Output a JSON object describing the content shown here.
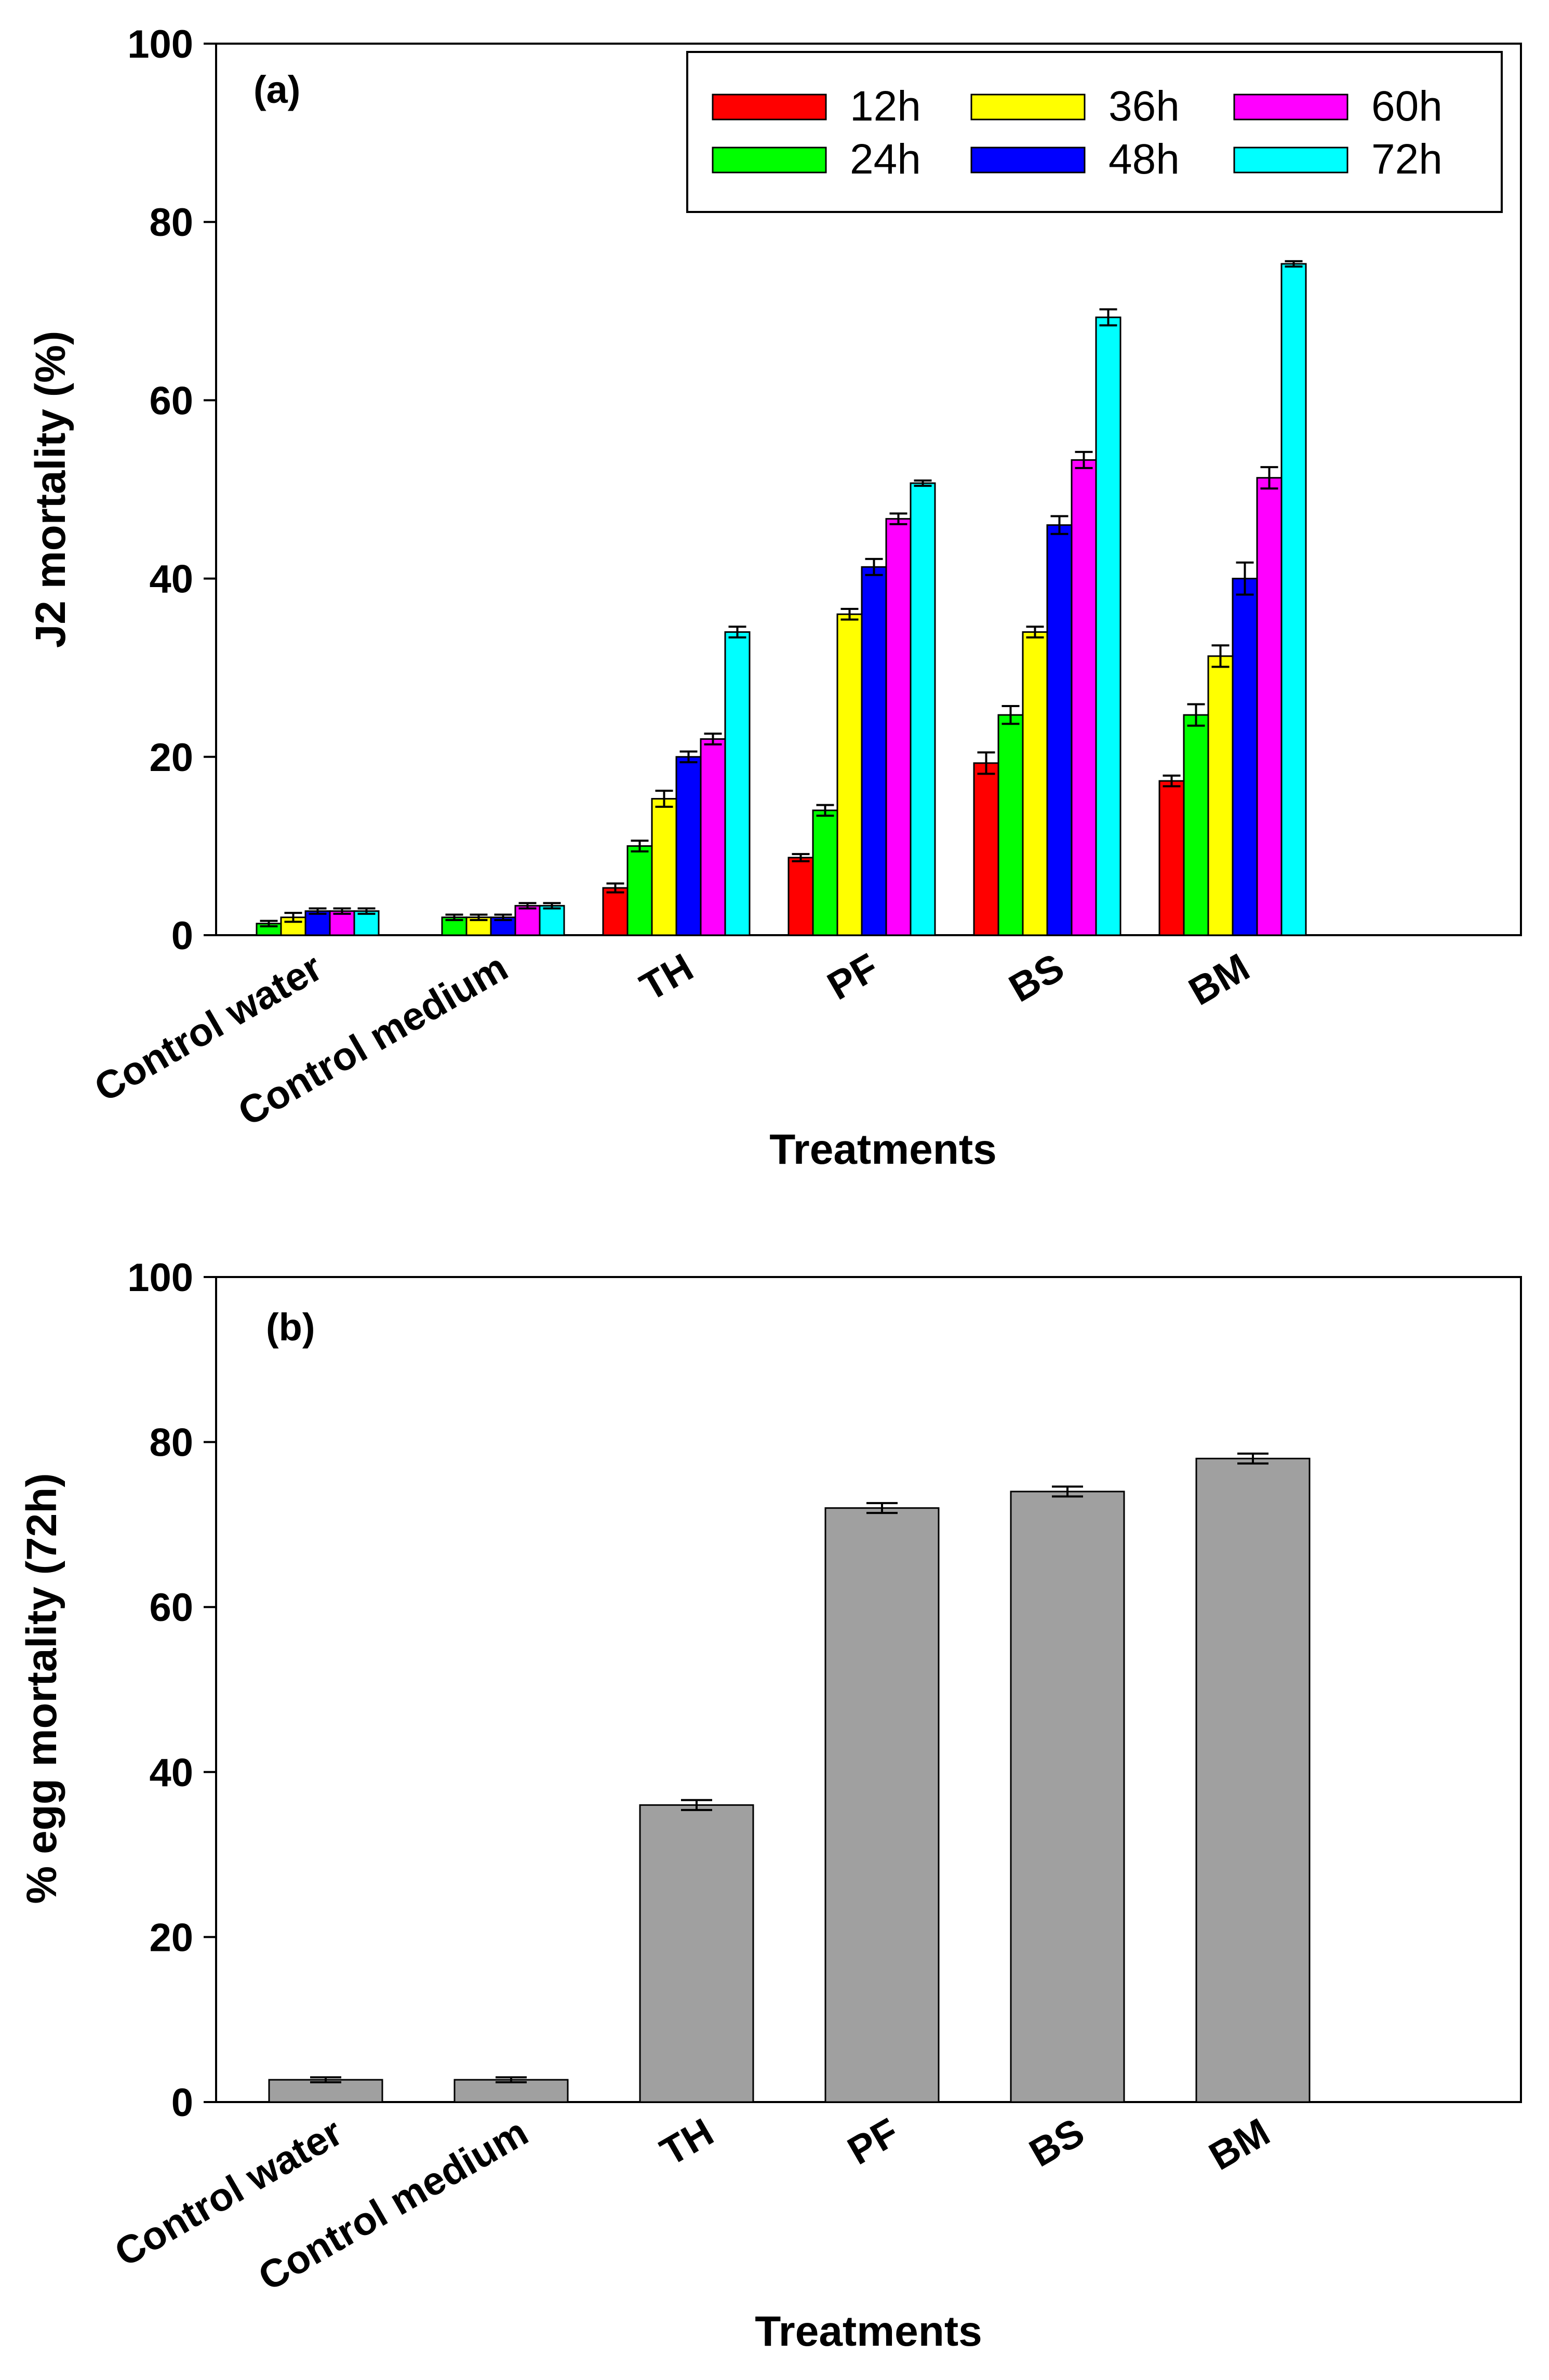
{
  "chart_data": [
    {
      "type": "bar",
      "panel_label": "(a)",
      "title": "",
      "xlabel": "Treatments",
      "ylabel": "J2 mortality (%)",
      "ylim": [
        0,
        100
      ],
      "yticks": [
        "0",
        "20",
        "40",
        "60",
        "80",
        "100"
      ],
      "grid": false,
      "legend_position": "top-right",
      "categories": [
        "Control water",
        "Control medium",
        "TH",
        "PF",
        "BS",
        "BM"
      ],
      "series": [
        {
          "name": "12h",
          "color": "#ff0000",
          "values": [
            0,
            0,
            5.3,
            8.7,
            19.3,
            17.3
          ],
          "errors": [
            0,
            0,
            0.5,
            0.4,
            1.2,
            0.6
          ]
        },
        {
          "name": "24h",
          "color": "#00ff00",
          "values": [
            1.3,
            2.0,
            10.0,
            14.0,
            24.7,
            24.7
          ],
          "errors": [
            0.3,
            0.3,
            0.6,
            0.6,
            1.0,
            1.2
          ]
        },
        {
          "name": "36h",
          "color": "#ffff00",
          "values": [
            2.0,
            2.0,
            15.3,
            36.0,
            34.0,
            31.3
          ],
          "errors": [
            0.5,
            0.3,
            0.9,
            0.6,
            0.6,
            1.2
          ]
        },
        {
          "name": "48h",
          "color": "#0000ff",
          "values": [
            2.7,
            2.0,
            20.0,
            41.3,
            46.0,
            40.0
          ],
          "errors": [
            0.3,
            0.3,
            0.6,
            0.9,
            1.0,
            1.8
          ]
        },
        {
          "name": "60h",
          "color": "#ff00ff",
          "values": [
            2.7,
            3.3,
            22.0,
            46.7,
            53.3,
            51.3
          ],
          "errors": [
            0.3,
            0.3,
            0.6,
            0.6,
            0.9,
            1.2
          ]
        },
        {
          "name": "72h",
          "color": "#00ffff",
          "values": [
            2.7,
            3.3,
            34.0,
            50.7,
            69.3,
            75.3
          ],
          "errors": [
            0.3,
            0.3,
            0.6,
            0.3,
            0.9,
            0.3
          ]
        }
      ]
    },
    {
      "type": "bar",
      "panel_label": "(b)",
      "title": "",
      "xlabel": "Treatments",
      "ylabel": "% egg mortality (72h)",
      "ylim": [
        0,
        100
      ],
      "yticks": [
        "0",
        "20",
        "40",
        "60",
        "80",
        "100"
      ],
      "grid": false,
      "categories": [
        "Control water",
        "Control medium",
        "TH",
        "PF",
        "BS",
        "BM"
      ],
      "series": [
        {
          "name": "72h",
          "color": "#a0a0a0",
          "values": [
            2.7,
            2.7,
            36.0,
            72.0,
            74.0,
            78.0
          ],
          "errors": [
            0.3,
            0.3,
            0.6,
            0.6,
            0.6,
            0.6
          ]
        }
      ]
    }
  ]
}
